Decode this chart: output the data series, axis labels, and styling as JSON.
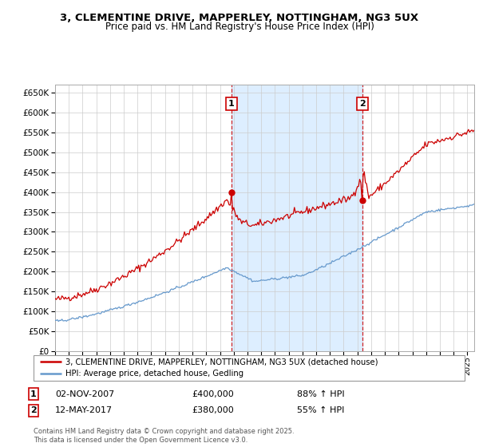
{
  "title": "3, CLEMENTINE DRIVE, MAPPERLEY, NOTTINGHAM, NG3 5UX",
  "subtitle": "Price paid vs. HM Land Registry's House Price Index (HPI)",
  "legend_line1": "3, CLEMENTINE DRIVE, MAPPERLEY, NOTTINGHAM, NG3 5UX (detached house)",
  "legend_line2": "HPI: Average price, detached house, Gedling",
  "transaction1_date": "02-NOV-2007",
  "transaction1_price": "£400,000",
  "transaction1_hpi": "88% ↑ HPI",
  "transaction2_date": "12-MAY-2017",
  "transaction2_price": "£380,000",
  "transaction2_hpi": "55% ↑ HPI",
  "footer": "Contains HM Land Registry data © Crown copyright and database right 2025.\nThis data is licensed under the Open Government Licence v3.0.",
  "red_color": "#cc0000",
  "blue_color": "#6699cc",
  "shaded_color": "#ddeeff",
  "ylim_min": 0,
  "ylim_max": 670000,
  "ytick_interval": 50000,
  "transaction1_year": 2007.84,
  "transaction2_year": 2017.37
}
